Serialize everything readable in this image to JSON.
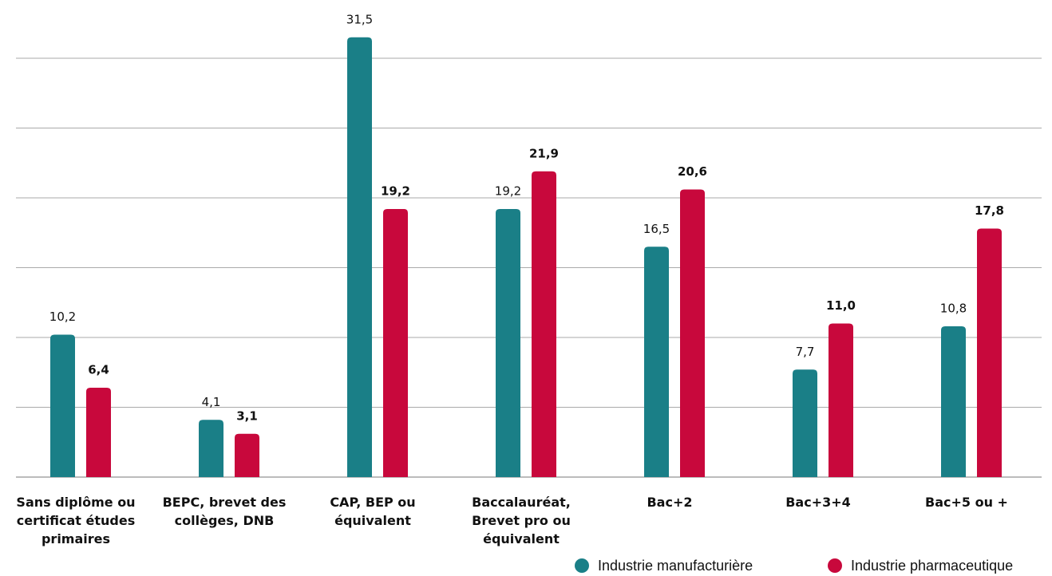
{
  "chart_data": {
    "type": "bar",
    "categories": [
      "Sans diplôme ou certificat études primaires",
      "BEPC, brevet des collèges, DNB",
      "CAP, BEP ou équivalent",
      "Baccalauréat, Brevet pro ou équivalent",
      "Bac+2",
      "Bac+3+4",
      "Bac+5 ou +"
    ],
    "series": [
      {
        "name": "Industrie manufacturière",
        "color": "#1a7f87",
        "values": [
          10.2,
          4.1,
          31.5,
          19.2,
          16.5,
          7.7,
          10.8
        ],
        "value_labels": [
          "10,2",
          "4,1",
          "31,5",
          "19,2",
          "16,5",
          "7,7",
          "10,8"
        ]
      },
      {
        "name": "Industrie pharmaceutique",
        "color": "#c8083c",
        "values": [
          6.4,
          3.1,
          19.2,
          21.9,
          20.6,
          11.0,
          17.8
        ],
        "value_labels": [
          "6,4",
          "3,1",
          "19,2",
          "21,9",
          "20,6",
          "11,0",
          "17,8"
        ]
      }
    ],
    "ylim": [
      0,
      33
    ],
    "yticks": [
      0,
      5,
      10,
      15,
      20,
      25,
      30
    ],
    "grid": true,
    "legend": "bottom-right"
  }
}
